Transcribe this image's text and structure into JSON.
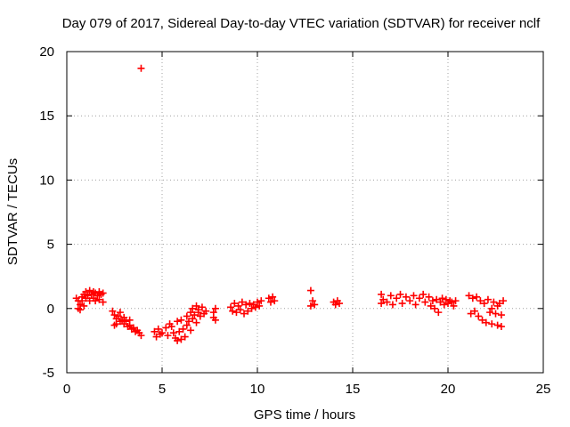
{
  "chart_data": {
    "type": "scatter",
    "title": "Day 079 of 2017, Sidereal Day-to-day VTEC variation (SDTVAR) for receiver nclf",
    "xlabel": "GPS time / hours",
    "ylabel": "SDTVAR / TECUs",
    "xlim": [
      0,
      25
    ],
    "ylim": [
      -5,
      20
    ],
    "xticks": [
      0,
      5,
      10,
      15,
      20,
      25
    ],
    "yticks": [
      -5,
      0,
      5,
      10,
      15,
      20
    ],
    "grid": true,
    "marker": "plus",
    "color": "#ff0000",
    "series": [
      {
        "name": "SDTVAR",
        "points": [
          [
            3.9,
            18.7
          ],
          [
            0.5,
            0.8
          ],
          [
            0.6,
            0.6
          ],
          [
            0.7,
            0.3
          ],
          [
            0.8,
            0.6
          ],
          [
            0.8,
            0.9
          ],
          [
            0.9,
            1.1
          ],
          [
            1.0,
            1.3
          ],
          [
            1.0,
            0.8
          ],
          [
            1.1,
            1.0
          ],
          [
            1.2,
            1.4
          ],
          [
            1.2,
            0.6
          ],
          [
            1.3,
            1.1
          ],
          [
            1.4,
            0.8
          ],
          [
            1.4,
            1.3
          ],
          [
            1.5,
            1.2
          ],
          [
            1.5,
            0.6
          ],
          [
            1.6,
            1.0
          ],
          [
            1.7,
            1.3
          ],
          [
            1.7,
            0.7
          ],
          [
            1.8,
            1.1
          ],
          [
            1.9,
            0.5
          ],
          [
            1.9,
            1.2
          ],
          [
            0.6,
            0.0
          ],
          [
            0.7,
            -0.1
          ],
          [
            0.9,
            0.2
          ],
          [
            2.4,
            -0.2
          ],
          [
            2.5,
            -0.5
          ],
          [
            2.6,
            -0.8
          ],
          [
            2.7,
            -0.6
          ],
          [
            2.8,
            -1.0
          ],
          [
            2.9,
            -0.9
          ],
          [
            3.0,
            -1.2
          ],
          [
            3.1,
            -1.0
          ],
          [
            3.2,
            -1.4
          ],
          [
            3.3,
            -1.3
          ],
          [
            3.4,
            -1.6
          ],
          [
            3.5,
            -1.5
          ],
          [
            3.6,
            -1.8
          ],
          [
            3.7,
            -1.7
          ],
          [
            3.8,
            -1.9
          ],
          [
            3.9,
            -2.1
          ],
          [
            2.5,
            -1.3
          ],
          [
            2.6,
            -1.2
          ],
          [
            2.8,
            -0.3
          ],
          [
            3.0,
            -0.7
          ],
          [
            3.3,
            -0.9
          ],
          [
            4.6,
            -1.8
          ],
          [
            4.7,
            -2.2
          ],
          [
            4.8,
            -1.6
          ],
          [
            4.9,
            -2.0
          ],
          [
            5.0,
            -1.9
          ],
          [
            5.2,
            -1.5
          ],
          [
            5.3,
            -2.1
          ],
          [
            5.4,
            -1.2
          ],
          [
            5.5,
            -1.4
          ],
          [
            5.6,
            -1.9
          ],
          [
            5.7,
            -2.3
          ],
          [
            5.8,
            -2.5
          ],
          [
            5.9,
            -1.8
          ],
          [
            6.0,
            -2.4
          ],
          [
            6.1,
            -1.6
          ],
          [
            6.2,
            -2.2
          ],
          [
            6.3,
            -1.3
          ],
          [
            6.4,
            -1.0
          ],
          [
            6.5,
            -1.7
          ],
          [
            6.6,
            -0.8
          ],
          [
            6.7,
            -0.5
          ],
          [
            6.8,
            -1.1
          ],
          [
            6.9,
            -0.3
          ],
          [
            7.0,
            -0.6
          ],
          [
            7.1,
            0.1
          ],
          [
            7.2,
            -0.4
          ],
          [
            7.3,
            -0.2
          ],
          [
            5.8,
            -1.0
          ],
          [
            6.0,
            -0.9
          ],
          [
            6.3,
            -0.6
          ],
          [
            6.5,
            -0.3
          ],
          [
            6.6,
            0.0
          ],
          [
            6.8,
            0.2
          ],
          [
            6.9,
            -0.1
          ],
          [
            7.7,
            -0.3
          ],
          [
            7.7,
            -0.7
          ],
          [
            7.8,
            -0.9
          ],
          [
            7.8,
            0.0
          ],
          [
            8.6,
            0.1
          ],
          [
            8.7,
            -0.2
          ],
          [
            8.8,
            0.4
          ],
          [
            8.9,
            -0.3
          ],
          [
            9.0,
            0.2
          ],
          [
            9.1,
            -0.1
          ],
          [
            9.2,
            0.5
          ],
          [
            9.3,
            -0.4
          ],
          [
            9.4,
            0.3
          ],
          [
            9.5,
            -0.2
          ],
          [
            9.6,
            0.4
          ],
          [
            9.7,
            0.0
          ],
          [
            9.8,
            0.3
          ],
          [
            9.9,
            0.1
          ],
          [
            10.0,
            0.5
          ],
          [
            10.1,
            0.2
          ],
          [
            10.2,
            0.6
          ],
          [
            10.6,
            0.8
          ],
          [
            10.7,
            0.5
          ],
          [
            10.8,
            0.9
          ],
          [
            10.9,
            0.6
          ],
          [
            12.8,
            1.4
          ],
          [
            12.8,
            0.2
          ],
          [
            12.9,
            0.6
          ],
          [
            13.0,
            0.3
          ],
          [
            14.0,
            0.5
          ],
          [
            14.1,
            0.3
          ],
          [
            14.2,
            0.6
          ],
          [
            14.3,
            0.4
          ],
          [
            16.5,
            1.1
          ],
          [
            16.5,
            0.4
          ],
          [
            16.6,
            0.7
          ],
          [
            16.8,
            0.5
          ],
          [
            17.0,
            1.0
          ],
          [
            17.1,
            0.3
          ],
          [
            17.3,
            0.8
          ],
          [
            17.5,
            1.1
          ],
          [
            17.6,
            0.4
          ],
          [
            17.8,
            0.9
          ],
          [
            18.0,
            0.6
          ],
          [
            18.2,
            1.0
          ],
          [
            18.3,
            0.3
          ],
          [
            18.5,
            0.8
          ],
          [
            18.7,
            1.1
          ],
          [
            18.8,
            0.5
          ],
          [
            19.0,
            0.9
          ],
          [
            19.1,
            0.2
          ],
          [
            19.2,
            0.6
          ],
          [
            19.3,
            0.0
          ],
          [
            19.4,
            0.7
          ],
          [
            19.5,
            -0.3
          ],
          [
            19.6,
            0.5
          ],
          [
            19.7,
            0.8
          ],
          [
            19.8,
            0.3
          ],
          [
            19.9,
            0.7
          ],
          [
            20.0,
            0.4
          ],
          [
            20.1,
            0.6
          ],
          [
            20.2,
            0.5
          ],
          [
            20.3,
            0.2
          ],
          [
            20.4,
            0.6
          ],
          [
            21.1,
            1.0
          ],
          [
            21.2,
            -0.4
          ],
          [
            21.3,
            0.8
          ],
          [
            21.4,
            -0.2
          ],
          [
            21.5,
            0.9
          ],
          [
            21.6,
            -0.6
          ],
          [
            21.7,
            0.6
          ],
          [
            21.8,
            -0.9
          ],
          [
            21.9,
            0.4
          ],
          [
            22.0,
            -1.1
          ],
          [
            22.1,
            0.7
          ],
          [
            22.2,
            -0.3
          ],
          [
            22.3,
            -1.2
          ],
          [
            22.4,
            0.5
          ],
          [
            22.5,
            -0.4
          ],
          [
            22.6,
            -1.3
          ],
          [
            22.7,
            0.4
          ],
          [
            22.8,
            -1.4
          ],
          [
            22.9,
            0.6
          ],
          [
            22.3,
            0.0
          ],
          [
            22.6,
            0.2
          ],
          [
            22.8,
            -0.5
          ]
        ]
      }
    ]
  }
}
